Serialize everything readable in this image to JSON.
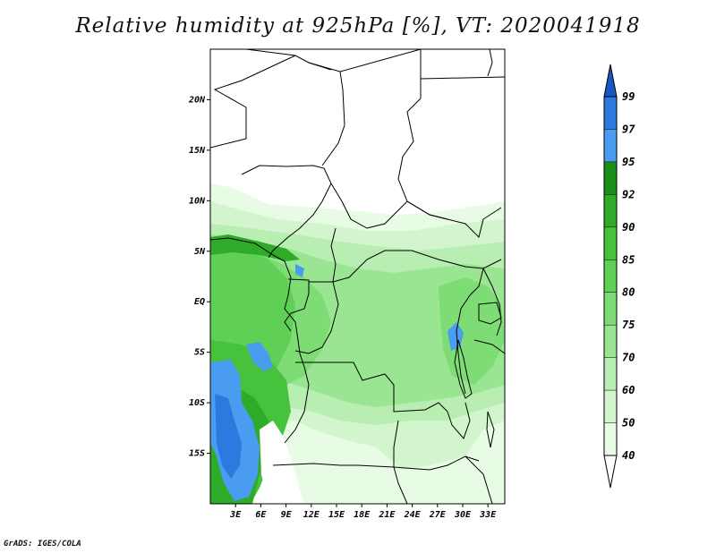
{
  "title": "Relative humidity at 925hPa [%], VT: 2020041918",
  "footer": "GrADS: IGES/COLA",
  "map": {
    "lon_range": [
      0,
      35
    ],
    "lat_range": [
      -20,
      25
    ],
    "lat_labels": [
      {
        "lat": 20,
        "label": "20N"
      },
      {
        "lat": 15,
        "label": "15N"
      },
      {
        "lat": 10,
        "label": "10N"
      },
      {
        "lat": 5,
        "label": "5N"
      },
      {
        "lat": 0,
        "label": "EQ"
      },
      {
        "lat": -5,
        "label": "5S"
      },
      {
        "lat": -10,
        "label": "10S"
      },
      {
        "lat": -15,
        "label": "15S"
      }
    ],
    "lon_labels": [
      {
        "lon": 3,
        "label": "3E"
      },
      {
        "lon": 6,
        "label": "6E"
      },
      {
        "lon": 9,
        "label": "9E"
      },
      {
        "lon": 12,
        "label": "12E"
      },
      {
        "lon": 15,
        "label": "15E"
      },
      {
        "lon": 18,
        "label": "18E"
      },
      {
        "lon": 21,
        "label": "21E"
      },
      {
        "lon": 24,
        "label": "24E"
      },
      {
        "lon": 27,
        "label": "27E"
      },
      {
        "lon": 30,
        "label": "30E"
      },
      {
        "lon": 33,
        "label": "33E"
      }
    ]
  },
  "colorbar": {
    "levels": [
      "40",
      "50",
      "60",
      "70",
      "75",
      "80",
      "85",
      "90",
      "92",
      "95",
      "97",
      "99"
    ],
    "colors": [
      "#e8fbe4",
      "#d2f5cd",
      "#b8eeb2",
      "#9ae592",
      "#7ddc74",
      "#5fd055",
      "#46c23c",
      "#2fab2a",
      "#1a8f1a",
      "#4a9cf0",
      "#2c7ae0",
      "#1a56c4"
    ]
  },
  "colors": {
    "water": "#ffffff",
    "dry": "#ffffff",
    "border": "#000000"
  }
}
